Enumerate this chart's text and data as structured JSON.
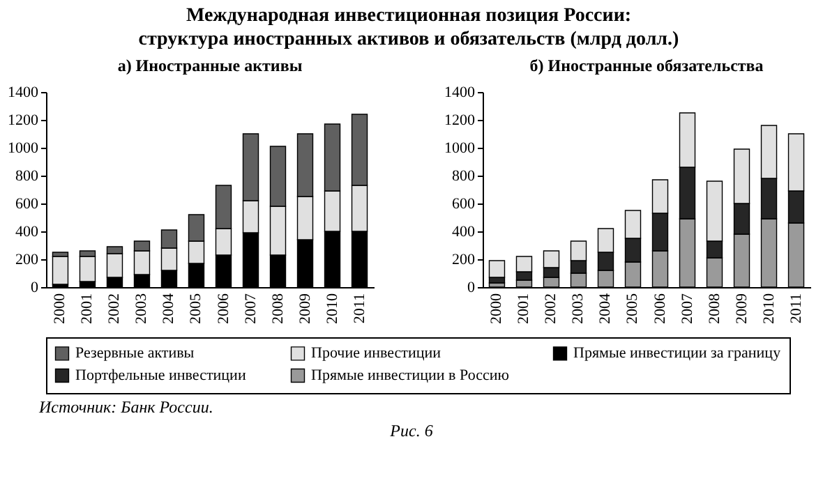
{
  "chart_data": [
    {
      "type": "bar",
      "title": "Международная инвестиционная позиция России: структура иностранных активов и обязательств (млрд долл.)",
      "subtitle": "а) Иностранные активы",
      "stacked": true,
      "legend": "bottom",
      "categories": [
        "2000",
        "2001",
        "2002",
        "2003",
        "2004",
        "2005",
        "2006",
        "2007",
        "2008",
        "2009",
        "2010",
        "2011"
      ],
      "ylim": [
        0,
        1400
      ],
      "yticks": [
        0,
        200,
        400,
        600,
        800,
        1000,
        1200,
        1400
      ],
      "series": [
        {
          "name": "Прямые инвестиции за границу",
          "color": "#000000",
          "values": [
            20,
            40,
            70,
            90,
            120,
            170,
            230,
            390,
            230,
            340,
            400,
            400
          ]
        },
        {
          "name": "Прочие инвестиции",
          "color": "#e0e0e0",
          "values": [
            200,
            180,
            170,
            170,
            160,
            160,
            190,
            230,
            350,
            310,
            290,
            330
          ]
        },
        {
          "name": "Резервные активы",
          "color": "#606060",
          "values": [
            30,
            40,
            50,
            70,
            130,
            190,
            310,
            480,
            430,
            450,
            480,
            510
          ]
        }
      ],
      "annotations": [
        "Источник: Банк России.",
        "Рис. 6"
      ]
    },
    {
      "type": "bar",
      "subtitle": "б) Иностранные обязательства",
      "stacked": true,
      "legend": "bottom",
      "categories": [
        "2000",
        "2001",
        "2002",
        "2003",
        "2004",
        "2005",
        "2006",
        "2007",
        "2008",
        "2009",
        "2010",
        "2011"
      ],
      "ylim": [
        0,
        1400
      ],
      "yticks": [
        0,
        200,
        400,
        600,
        800,
        1000,
        1200,
        1400
      ],
      "series": [
        {
          "name": "Прямые инвестиции в Россию",
          "color": "#9a9a9a",
          "values": [
            30,
            50,
            70,
            100,
            120,
            180,
            260,
            490,
            210,
            380,
            490,
            460
          ]
        },
        {
          "name": "Портфельные инвестиции",
          "color": "#262626",
          "values": [
            40,
            60,
            70,
            90,
            130,
            170,
            270,
            370,
            120,
            220,
            290,
            230
          ]
        },
        {
          "name": "Прочие инвестиции",
          "color": "#e0e0e0",
          "values": [
            120,
            110,
            120,
            140,
            170,
            200,
            240,
            390,
            430,
            390,
            380,
            410
          ]
        }
      ]
    }
  ]
}
